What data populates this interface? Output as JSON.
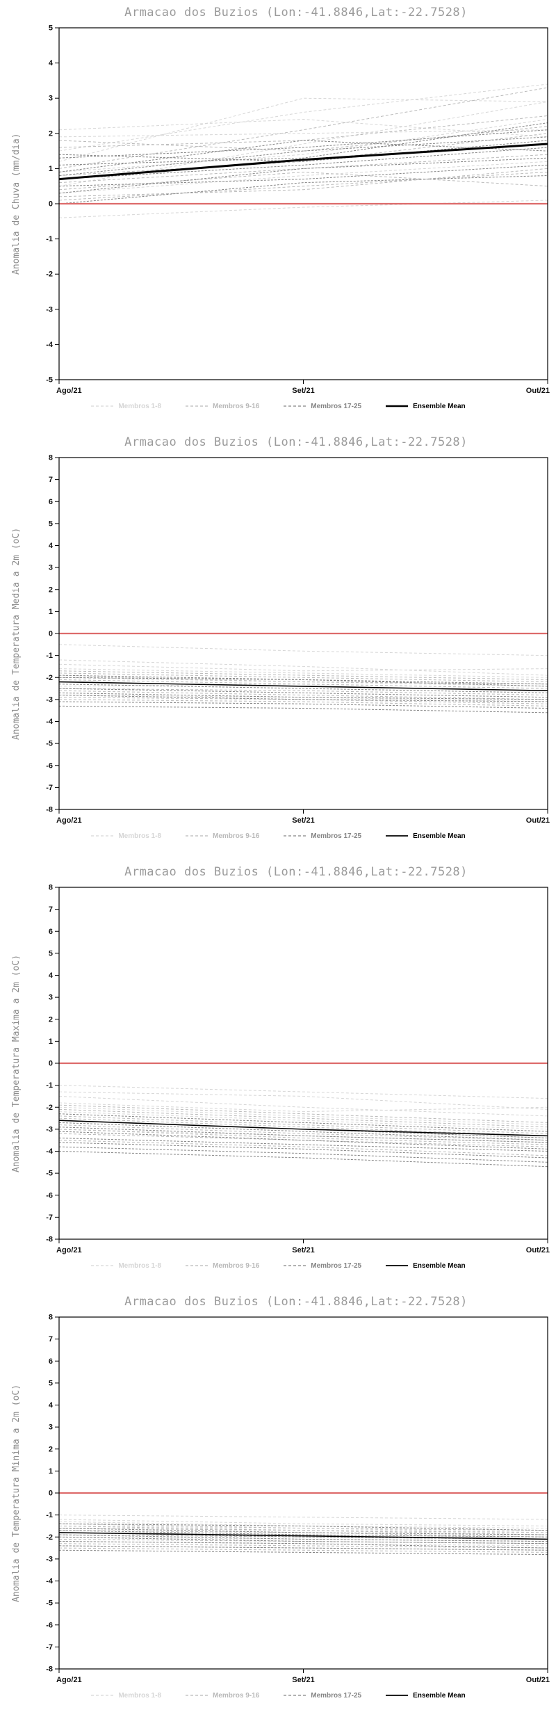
{
  "chart_data": [
    {
      "type": "line",
      "title": "Armacao dos Buzios (Lon:-41.8846,Lat:-22.7528)",
      "ylabel": "Anomalia de Chuva (mm/dia)",
      "xlabel": "",
      "ylim": [
        -5,
        5
      ],
      "ytick_step": 1,
      "x": [
        0,
        1,
        2
      ],
      "xtick_labels": [
        "Ago/21",
        "Set/21",
        "Out/21"
      ],
      "grid": false,
      "legend_position": "bottom",
      "zero_line": {
        "value": 0,
        "color": "#dd6b6b"
      },
      "groups": [
        {
          "name": "Membros 1-8",
          "color": "#d6d6d6",
          "dash": "4,3",
          "members": [
            [
              1.9,
              2.0,
              2.1
            ],
            [
              0.3,
              0.8,
              1.2
            ],
            [
              1.5,
              2.6,
              3.4
            ],
            [
              -0.4,
              -0.1,
              0.1
            ],
            [
              0.9,
              1.4,
              2.4
            ],
            [
              2.1,
              2.4,
              1.9
            ],
            [
              0.5,
              1.7,
              2.9
            ],
            [
              1.2,
              3.0,
              2.9
            ]
          ]
        },
        {
          "name": "Membros 9-16",
          "color": "#b9b9b9",
          "dash": "4,3",
          "members": [
            [
              0.6,
              1.0,
              1.4
            ],
            [
              1.8,
              1.5,
              2.2
            ],
            [
              0.1,
              0.5,
              0.9
            ],
            [
              1.0,
              2.1,
              3.3
            ],
            [
              0.4,
              0.9,
              0.5
            ],
            [
              1.6,
              1.8,
              2.5
            ],
            [
              0.8,
              1.2,
              2.0
            ],
            [
              0.2,
              0.4,
              1.0
            ]
          ]
        },
        {
          "name": "Membros 17-25",
          "color": "#858585",
          "dash": "3,2",
          "members": [
            [
              0.7,
              1.1,
              1.6
            ],
            [
              1.3,
              1.6,
              2.1
            ],
            [
              0.0,
              0.6,
              0.8
            ],
            [
              0.9,
              1.8,
              1.5
            ],
            [
              1.1,
              1.3,
              2.3
            ],
            [
              0.5,
              0.7,
              1.1
            ],
            [
              1.4,
              1.2,
              1.8
            ],
            [
              0.3,
              1.0,
              1.3
            ],
            [
              0.8,
              1.5,
              1.9
            ]
          ]
        }
      ],
      "mean": {
        "name": "Ensemble Mean",
        "color": "#000000",
        "width": 3,
        "values": [
          0.7,
          1.25,
          1.7
        ]
      }
    },
    {
      "type": "line",
      "title": "Armacao dos Buzios (Lon:-41.8846,Lat:-22.7528)",
      "ylabel": "Anomalia de Temperatura Media a 2m (oC)",
      "xlabel": "",
      "ylim": [
        -8,
        8
      ],
      "ytick_step": 1,
      "x": [
        0,
        1,
        2
      ],
      "xtick_labels": [
        "Ago/21",
        "Set/21",
        "Out/21"
      ],
      "grid": false,
      "legend_position": "bottom",
      "zero_line": {
        "value": 0,
        "color": "#dd6b6b"
      },
      "groups": [
        {
          "name": "Membros 1-8",
          "color": "#d6d6d6",
          "dash": "4,3",
          "members": [
            [
              -0.5,
              -0.8,
              -1.0
            ],
            [
              -1.6,
              -1.8,
              -2.0
            ],
            [
              -2.2,
              -2.4,
              -2.6
            ],
            [
              -1.2,
              -1.5,
              -1.9
            ],
            [
              -2.8,
              -2.9,
              -3.1
            ],
            [
              -1.9,
              -2.2,
              -2.4
            ],
            [
              -2.4,
              -2.3,
              -2.5
            ],
            [
              -1.4,
              -1.7,
              -1.6
            ]
          ]
        },
        {
          "name": "Membros 9-16",
          "color": "#b9b9b9",
          "dash": "4,3",
          "members": [
            [
              -2.0,
              -2.2,
              -2.3
            ],
            [
              -2.6,
              -2.8,
              -3.0
            ],
            [
              -1.8,
              -2.0,
              -2.2
            ],
            [
              -3.0,
              -3.1,
              -3.3
            ],
            [
              -2.1,
              -2.3,
              -2.5
            ],
            [
              -2.5,
              -2.6,
              -2.8
            ],
            [
              -1.7,
              -1.9,
              -2.1
            ],
            [
              -2.9,
              -3.0,
              -3.2
            ]
          ]
        },
        {
          "name": "Membros 17-25",
          "color": "#858585",
          "dash": "3,2",
          "members": [
            [
              -2.3,
              -2.5,
              -2.7
            ],
            [
              -3.1,
              -3.2,
              -3.4
            ],
            [
              -2.0,
              -2.1,
              -2.4
            ],
            [
              -2.7,
              -2.9,
              -3.0
            ],
            [
              -3.3,
              -3.4,
              -3.6
            ],
            [
              -2.2,
              -2.4,
              -2.6
            ],
            [
              -2.8,
              -3.0,
              -3.1
            ],
            [
              -1.9,
              -2.1,
              -2.3
            ],
            [
              -2.5,
              -2.7,
              -2.9
            ]
          ]
        }
      ],
      "mean": {
        "name": "Ensemble Mean",
        "color": "#000000",
        "width": 1.6,
        "values": [
          -2.2,
          -2.4,
          -2.6
        ]
      }
    },
    {
      "type": "line",
      "title": "Armacao dos Buzios (Lon:-41.8846,Lat:-22.7528)",
      "ylabel": "Anomalia de Temperatura Maxima a 2m (oC)",
      "xlabel": "",
      "ylim": [
        -8,
        8
      ],
      "ytick_step": 1,
      "x": [
        0,
        1,
        2
      ],
      "xtick_labels": [
        "Ago/21",
        "Set/21",
        "Out/21"
      ],
      "grid": false,
      "legend_position": "bottom",
      "zero_line": {
        "value": 0,
        "color": "#dd6b6b"
      },
      "groups": [
        {
          "name": "Membros 1-8",
          "color": "#d6d6d6",
          "dash": "4,3",
          "members": [
            [
              -1.0,
              -1.3,
              -1.6
            ],
            [
              -2.0,
              -2.4,
              -2.8
            ],
            [
              -1.5,
              -2.0,
              -2.4
            ],
            [
              -2.6,
              -3.0,
              -3.4
            ],
            [
              -1.8,
              -2.2,
              -2.0
            ],
            [
              -3.0,
              -3.3,
              -3.6
            ],
            [
              -2.2,
              -2.6,
              -3.0
            ],
            [
              -1.3,
              -1.5,
              -2.1
            ]
          ]
        },
        {
          "name": "Membros 9-16",
          "color": "#b9b9b9",
          "dash": "4,3",
          "members": [
            [
              -2.4,
              -2.8,
              -3.2
            ],
            [
              -3.2,
              -3.5,
              -3.8
            ],
            [
              -1.9,
              -2.3,
              -2.7
            ],
            [
              -2.8,
              -3.2,
              -3.5
            ],
            [
              -3.5,
              -3.8,
              -4.2
            ],
            [
              -2.1,
              -2.5,
              -2.9
            ],
            [
              -3.0,
              -3.4,
              -3.7
            ],
            [
              -2.5,
              -2.9,
              -3.3
            ]
          ]
        },
        {
          "name": "Membros 17-25",
          "color": "#858585",
          "dash": "3,2",
          "members": [
            [
              -2.7,
              -3.1,
              -3.5
            ],
            [
              -3.4,
              -3.7,
              -4.0
            ],
            [
              -2.3,
              -2.7,
              -3.1
            ],
            [
              -3.8,
              -4.1,
              -4.5
            ],
            [
              -2.9,
              -3.3,
              -3.6
            ],
            [
              -3.6,
              -3.9,
              -4.3
            ],
            [
              -2.6,
              -3.0,
              -3.4
            ],
            [
              -4.0,
              -4.3,
              -4.7
            ],
            [
              -3.1,
              -3.5,
              -3.9
            ]
          ]
        }
      ],
      "mean": {
        "name": "Ensemble Mean",
        "color": "#000000",
        "width": 1.6,
        "values": [
          -2.6,
          -3.0,
          -3.3
        ]
      }
    },
    {
      "type": "line",
      "title": "Armacao dos Buzios (Lon:-41.8846,Lat:-22.7528)",
      "ylabel": "Anomalia de Temperatura Minima a 2m (oC)",
      "xlabel": "",
      "ylim": [
        -8,
        8
      ],
      "ytick_step": 1,
      "x": [
        0,
        1,
        2
      ],
      "xtick_labels": [
        "Ago/21",
        "Set/21",
        "Out/21"
      ],
      "grid": false,
      "legend_position": "bottom",
      "zero_line": {
        "value": 0,
        "color": "#dd6b6b"
      },
      "groups": [
        {
          "name": "Membros 1-8",
          "color": "#d6d6d6",
          "dash": "4,3",
          "members": [
            [
              -1.0,
              -1.1,
              -1.2
            ],
            [
              -1.8,
              -1.9,
              -2.0
            ],
            [
              -1.3,
              -1.5,
              -1.6
            ],
            [
              -2.2,
              -2.3,
              -2.4
            ],
            [
              -1.5,
              -1.6,
              -1.8
            ],
            [
              -2.0,
              -2.1,
              -2.2
            ],
            [
              -1.2,
              -1.4,
              -1.5
            ],
            [
              -2.4,
              -2.5,
              -2.6
            ]
          ]
        },
        {
          "name": "Membros 9-16",
          "color": "#b9b9b9",
          "dash": "4,3",
          "members": [
            [
              -1.6,
              -1.7,
              -1.9
            ],
            [
              -2.1,
              -2.2,
              -2.3
            ],
            [
              -1.4,
              -1.6,
              -1.7
            ],
            [
              -2.3,
              -2.4,
              -2.5
            ],
            [
              -1.7,
              -1.8,
              -2.0
            ],
            [
              -2.5,
              -2.6,
              -2.7
            ],
            [
              -1.5,
              -1.7,
              -1.8
            ],
            [
              -1.9,
              -2.0,
              -2.1
            ]
          ]
        },
        {
          "name": "Membros 17-25",
          "color": "#858585",
          "dash": "3,2",
          "members": [
            [
              -1.8,
              -2.0,
              -2.1
            ],
            [
              -2.2,
              -2.3,
              -2.5
            ],
            [
              -1.6,
              -1.8,
              -1.9
            ],
            [
              -2.6,
              -2.7,
              -2.8
            ],
            [
              -1.9,
              -2.1,
              -2.2
            ],
            [
              -2.4,
              -2.5,
              -2.6
            ],
            [
              -1.7,
              -1.9,
              -2.0
            ],
            [
              -2.0,
              -2.2,
              -2.3
            ],
            [
              -1.4,
              -1.5,
              -1.7
            ]
          ]
        }
      ],
      "mean": {
        "name": "Ensemble Mean",
        "color": "#000000",
        "width": 1.6,
        "values": [
          -1.8,
          -1.95,
          -2.1
        ]
      }
    }
  ]
}
